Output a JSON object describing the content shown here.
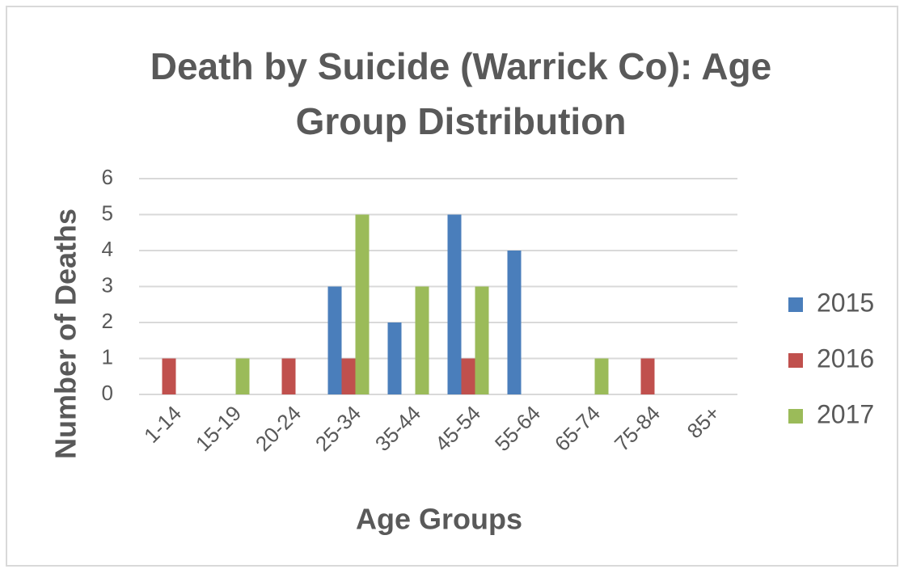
{
  "chart_data": {
    "type": "bar",
    "title": "Death by Suicide (Warrick Co): Age Group Distribution",
    "x_label": "Age Groups",
    "y_label": "Number of Deaths",
    "categories": [
      "1-14",
      "15-19",
      "20-24",
      "25-34",
      "35-44",
      "45-54",
      "55-64",
      "65-74",
      "75-84",
      "85+"
    ],
    "series": [
      {
        "name": "2015",
        "color": "#4a7ebb",
        "values": [
          0,
          0,
          0,
          3,
          2,
          5,
          4,
          0,
          0,
          0
        ]
      },
      {
        "name": "2016",
        "color": "#c0504d",
        "values": [
          1,
          0,
          1,
          1,
          0,
          1,
          0,
          0,
          1,
          0
        ]
      },
      {
        "name": "2017",
        "color": "#9bbb59",
        "values": [
          0,
          1,
          0,
          5,
          3,
          3,
          0,
          1,
          0,
          0
        ]
      }
    ],
    "ylim": [
      0,
      6
    ],
    "yticks": [
      0,
      1,
      2,
      3,
      4,
      5,
      6
    ],
    "grid": true,
    "legend": "right"
  }
}
